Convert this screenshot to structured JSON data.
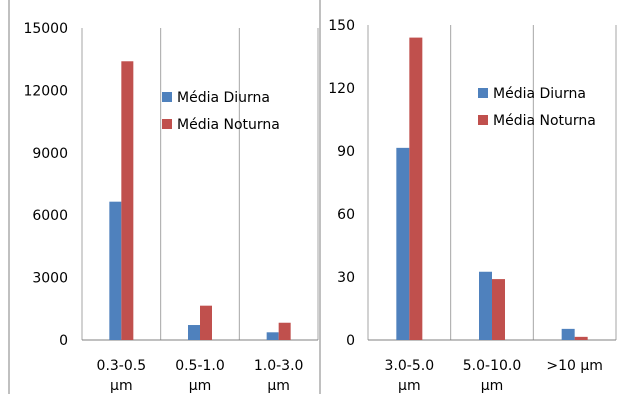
{
  "chart_data": [
    {
      "type": "bar",
      "categories": [
        [
          "0.3-0.5",
          "µm"
        ],
        [
          "0.5-1.0",
          "µm"
        ],
        [
          "1.0-3.0",
          "µm"
        ]
      ],
      "series": [
        {
          "name": "Média Diurna",
          "color": "#4f81bd",
          "values": [
            6650,
            720,
            370
          ]
        },
        {
          "name": "Média Noturna",
          "color": "#c0504d",
          "values": [
            13400,
            1650,
            830
          ]
        }
      ],
      "yticks": [
        "0",
        "3000",
        "6000",
        "9000",
        "12000",
        "15000"
      ],
      "ylim": [
        0,
        15000
      ],
      "grid": "vertical",
      "legend": "right"
    },
    {
      "type": "bar",
      "categories": [
        [
          "3.0-5.0",
          "µm"
        ],
        [
          "5.0-10.0",
          "µm"
        ],
        [
          ">10 µm"
        ]
      ],
      "series": [
        {
          "name": "Média Diurna",
          "color": "#4f81bd",
          "values": [
            91.5,
            32.5,
            5.3
          ]
        },
        {
          "name": "Média Noturna",
          "color": "#c0504d",
          "values": [
            144,
            29,
            1.5
          ]
        }
      ],
      "yticks": [
        "0",
        "30",
        "60",
        "90",
        "120",
        "150"
      ],
      "ylim": [
        0,
        150
      ],
      "grid": "vertical",
      "legend": "right"
    }
  ]
}
